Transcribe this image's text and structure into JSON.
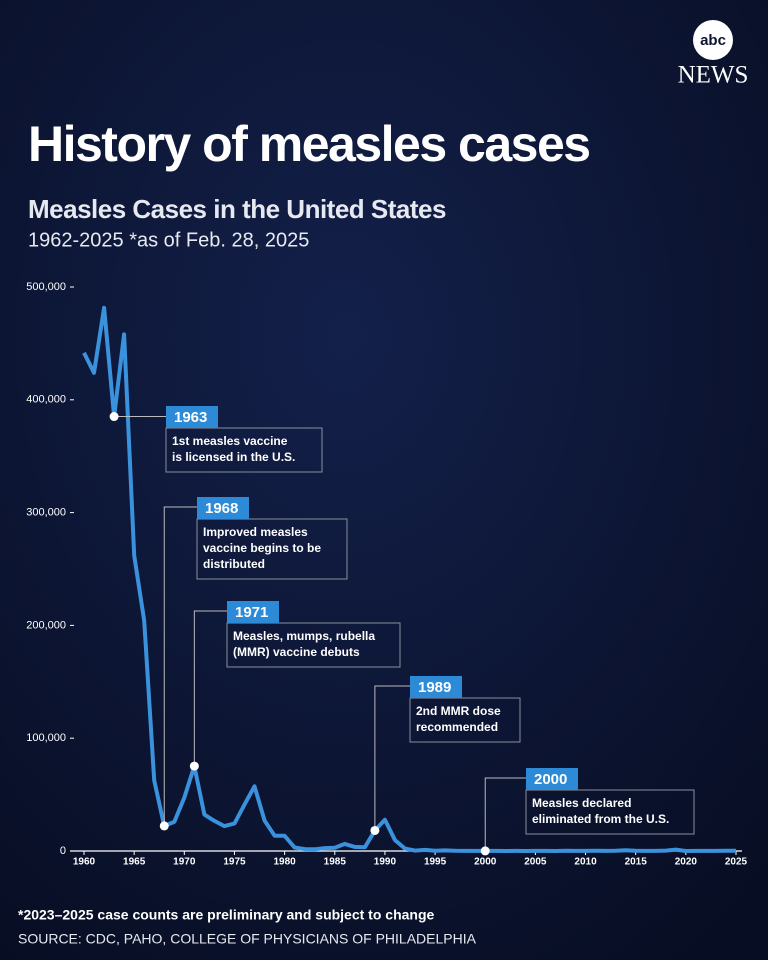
{
  "brand": {
    "logo": "abc",
    "name": "NEWS"
  },
  "chart_data": {
    "type": "line",
    "title": "History of measles cases",
    "subtitle": "Measles Cases in the United States",
    "note": "1962-2025 *as of Feb. 28, 2025",
    "x": [
      1960,
      1961,
      1962,
      1963,
      1964,
      1965,
      1966,
      1967,
      1968,
      1969,
      1970,
      1971,
      1972,
      1973,
      1974,
      1975,
      1976,
      1977,
      1978,
      1979,
      1980,
      1981,
      1982,
      1983,
      1984,
      1985,
      1986,
      1987,
      1988,
      1989,
      1990,
      1991,
      1992,
      1993,
      1994,
      1995,
      1996,
      1997,
      1998,
      1999,
      2000,
      2001,
      2002,
      2003,
      2004,
      2005,
      2006,
      2007,
      2008,
      2009,
      2010,
      2011,
      2012,
      2013,
      2014,
      2015,
      2016,
      2017,
      2018,
      2019,
      2020,
      2021,
      2022,
      2023,
      2024,
      2025
    ],
    "values": [
      441703,
      423919,
      481530,
      385156,
      458083,
      261904,
      204136,
      62705,
      22231,
      25826,
      47351,
      75290,
      32275,
      26690,
      22094,
      24374,
      41126,
      57345,
      26871,
      13597,
      13506,
      3124,
      1714,
      1497,
      2587,
      2822,
      6282,
      3655,
      3396,
      18193,
      27786,
      9643,
      2126,
      312,
      963,
      309,
      508,
      138,
      100,
      100,
      86,
      116,
      44,
      56,
      37,
      66,
      55,
      43,
      140,
      71,
      63,
      220,
      55,
      187,
      667,
      188,
      86,
      120,
      375,
      1274,
      13,
      49,
      121,
      59,
      285,
      164
    ],
    "color": "#3b92dc",
    "xlim": [
      1960,
      2025
    ],
    "ylim": [
      0,
      500000
    ],
    "xticks": [
      1960,
      1965,
      1970,
      1975,
      1980,
      1985,
      1990,
      1995,
      2000,
      2005,
      2010,
      2015,
      2020,
      2025
    ],
    "yticks": [
      0,
      {
        "value": 100000,
        "label": "100,000"
      },
      {
        "value": 200000,
        "label": "200,000"
      },
      {
        "value": 300000,
        "label": "300,000"
      },
      {
        "value": 400000,
        "label": "400,000"
      },
      {
        "value": 500000,
        "label": "500,000"
      }
    ],
    "annotations": [
      {
        "label": "1963",
        "lines": [
          "1st measles vaccine",
          "is licensed in the U.S."
        ]
      },
      {
        "label": "1968",
        "lines": [
          "Improved measles",
          "vaccine begins to be",
          "distributed"
        ]
      },
      {
        "label": "1971",
        "lines": [
          "Measles, mumps, rubella",
          "(MMR) vaccine debuts"
        ]
      },
      {
        "label": "1989",
        "lines": [
          "2nd MMR dose",
          "recommended"
        ]
      },
      {
        "label": "2000",
        "lines": [
          "Measles declared",
          "eliminated from the U.S."
        ]
      }
    ],
    "footnote": "*2023–2025 case counts are preliminary and subject to change",
    "source": "SOURCE:  CDC, PAHO, COLLEGE OF PHYSICIANS OF PHILADELPHIA"
  }
}
